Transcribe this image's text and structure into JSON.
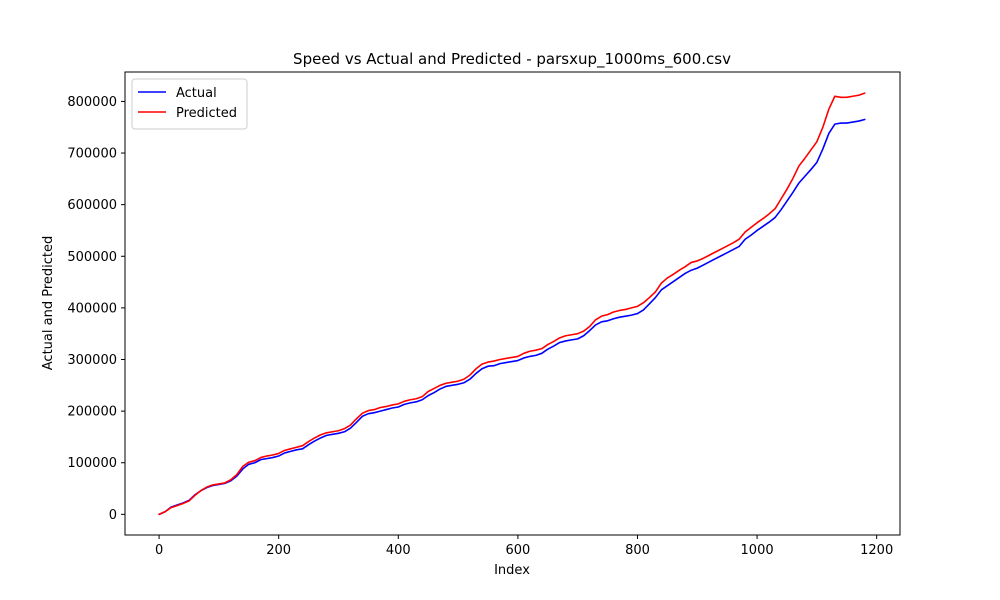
{
  "chart_data": {
    "type": "line",
    "title": "Speed vs Actual and Predicted - parsxup_1000ms_600.csv",
    "xlabel": "Index",
    "ylabel": "Actual and Predicted",
    "xlim": [
      -57,
      1239
    ],
    "ylim": [
      -40000,
      857000
    ],
    "xticks": [
      0,
      200,
      400,
      600,
      800,
      1000,
      1200
    ],
    "yticks": [
      0,
      100000,
      200000,
      300000,
      400000,
      500000,
      600000,
      700000,
      800000
    ],
    "grid": false,
    "legend": "upper-left",
    "series": [
      {
        "name": "Actual",
        "color": "#0000ff",
        "x": [
          0,
          10,
          20,
          30,
          40,
          50,
          60,
          70,
          80,
          90,
          100,
          110,
          120,
          130,
          140,
          150,
          160,
          170,
          180,
          190,
          200,
          210,
          220,
          230,
          240,
          250,
          260,
          270,
          280,
          290,
          300,
          310,
          320,
          330,
          340,
          350,
          360,
          370,
          380,
          390,
          400,
          410,
          420,
          430,
          440,
          450,
          460,
          470,
          480,
          490,
          500,
          510,
          520,
          530,
          540,
          550,
          560,
          570,
          580,
          590,
          600,
          610,
          620,
          630,
          640,
          650,
          660,
          670,
          680,
          690,
          700,
          710,
          720,
          730,
          740,
          750,
          760,
          770,
          780,
          790,
          800,
          810,
          820,
          830,
          840,
          850,
          860,
          870,
          880,
          890,
          900,
          910,
          920,
          930,
          940,
          950,
          960,
          970,
          980,
          990,
          1000,
          1010,
          1020,
          1030,
          1040,
          1050,
          1060,
          1070,
          1080,
          1090,
          1100,
          1110,
          1120,
          1130,
          1140,
          1150,
          1160,
          1170,
          1180
        ],
        "y": [
          0,
          5000,
          14000,
          18000,
          22000,
          27000,
          38000,
          46000,
          52000,
          56000,
          58000,
          60000,
          65000,
          74000,
          88000,
          97000,
          100000,
          106000,
          108000,
          110000,
          113000,
          119000,
          122000,
          125000,
          127000,
          135000,
          142000,
          148000,
          153000,
          155000,
          157000,
          160000,
          167000,
          178000,
          190000,
          195000,
          197000,
          200000,
          203000,
          206000,
          208000,
          213000,
          216000,
          218000,
          222000,
          230000,
          236000,
          243000,
          248000,
          250000,
          252000,
          255000,
          262000,
          273000,
          282000,
          287000,
          288000,
          292000,
          294000,
          296000,
          298000,
          303000,
          306000,
          308000,
          312000,
          320000,
          326000,
          333000,
          336000,
          338000,
          340000,
          346000,
          356000,
          367000,
          373000,
          375000,
          379000,
          382000,
          384000,
          386000,
          389000,
          396000,
          408000,
          420000,
          435000,
          443000,
          451000,
          459000,
          467000,
          473000,
          477000,
          483000,
          489000,
          495000,
          501000,
          507000,
          513000,
          519000,
          533000,
          541000,
          550000,
          558000,
          566000,
          575000,
          590000,
          607000,
          624000,
          642000,
          655000,
          668000,
          682000,
          708000,
          738000,
          756000,
          758000,
          758000,
          760000,
          762000,
          765000
        ]
      },
      {
        "name": "Predicted",
        "color": "#ff0000",
        "x": [
          0,
          10,
          20,
          30,
          40,
          50,
          60,
          70,
          80,
          90,
          100,
          110,
          120,
          130,
          140,
          150,
          160,
          170,
          180,
          190,
          200,
          210,
          220,
          230,
          240,
          250,
          260,
          270,
          280,
          290,
          300,
          310,
          320,
          330,
          340,
          350,
          360,
          370,
          380,
          390,
          400,
          410,
          420,
          430,
          440,
          450,
          460,
          470,
          480,
          490,
          500,
          510,
          520,
          530,
          540,
          550,
          560,
          570,
          580,
          590,
          600,
          610,
          620,
          630,
          640,
          650,
          660,
          670,
          680,
          690,
          700,
          710,
          720,
          730,
          740,
          750,
          760,
          770,
          780,
          790,
          800,
          810,
          820,
          830,
          840,
          850,
          860,
          870,
          880,
          890,
          900,
          910,
          920,
          930,
          940,
          950,
          960,
          970,
          980,
          990,
          1000,
          1010,
          1020,
          1030,
          1040,
          1050,
          1060,
          1070,
          1080,
          1090,
          1100,
          1110,
          1120,
          1130,
          1140,
          1150,
          1160,
          1170,
          1180
        ],
        "y": [
          0,
          5000,
          13000,
          17000,
          21000,
          26000,
          37000,
          46000,
          53000,
          57000,
          59000,
          61000,
          67000,
          77000,
          93000,
          101000,
          104000,
          110000,
          113000,
          115000,
          118000,
          124000,
          127000,
          130000,
          133000,
          141000,
          148000,
          154000,
          158000,
          160000,
          162000,
          166000,
          173000,
          185000,
          196000,
          201000,
          203000,
          207000,
          209000,
          212000,
          214000,
          219000,
          222000,
          224000,
          228000,
          238000,
          244000,
          250000,
          254000,
          256000,
          258000,
          262000,
          270000,
          282000,
          291000,
          295000,
          297000,
          300000,
          302000,
          304000,
          306000,
          312000,
          316000,
          318000,
          321000,
          329000,
          335000,
          342000,
          346000,
          348000,
          350000,
          355000,
          364000,
          377000,
          384000,
          387000,
          392000,
          395000,
          397000,
          400000,
          403000,
          410000,
          420000,
          431000,
          448000,
          458000,
          465000,
          473000,
          480000,
          488000,
          491000,
          496000,
          502000,
          508000,
          514000,
          520000,
          526000,
          533000,
          547000,
          556000,
          565000,
          573000,
          582000,
          592000,
          611000,
          630000,
          651000,
          675000,
          690000,
          706000,
          722000,
          750000,
          785000,
          810000,
          808000,
          808000,
          810000,
          812000,
          816000
        ]
      }
    ]
  }
}
